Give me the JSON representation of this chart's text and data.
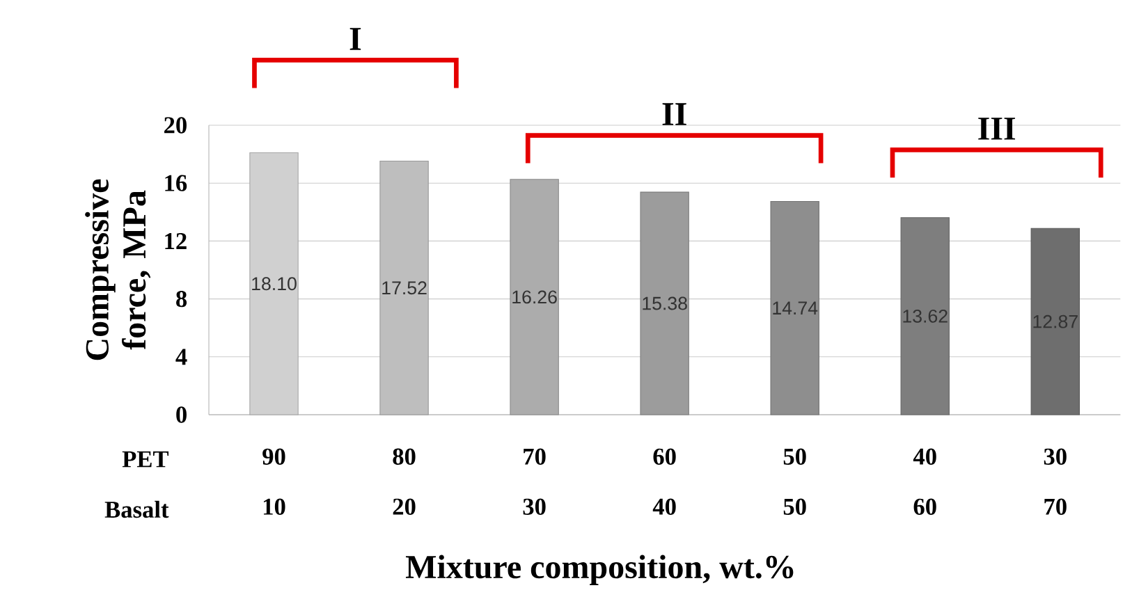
{
  "chart_data": {
    "type": "bar",
    "categories": [
      "90 10",
      "80 20",
      "70 30",
      "60 40",
      "50 50",
      "40 60",
      "30 70"
    ],
    "values": [
      18.1,
      17.52,
      16.26,
      15.38,
      14.74,
      13.62,
      12.87
    ],
    "value_labels": [
      "18.10",
      "17.52",
      "16.26",
      "15.38",
      "14.74",
      "13.62",
      "12.87"
    ],
    "colors": [
      "#d0d0d0",
      "#bebebe",
      "#acacac",
      "#9c9c9c",
      "#8e8e8e",
      "#7e7e7e",
      "#6e6e6e"
    ],
    "xlabel": "Mixture composition, wt.%",
    "ylabel": "Compressive force, MPa",
    "ylim": [
      0,
      20
    ],
    "yticks": [
      0,
      4,
      8,
      12,
      16,
      20
    ],
    "grid": "y",
    "annotations": [
      "I",
      "II",
      "III",
      "PET",
      "Basalt"
    ]
  }
}
